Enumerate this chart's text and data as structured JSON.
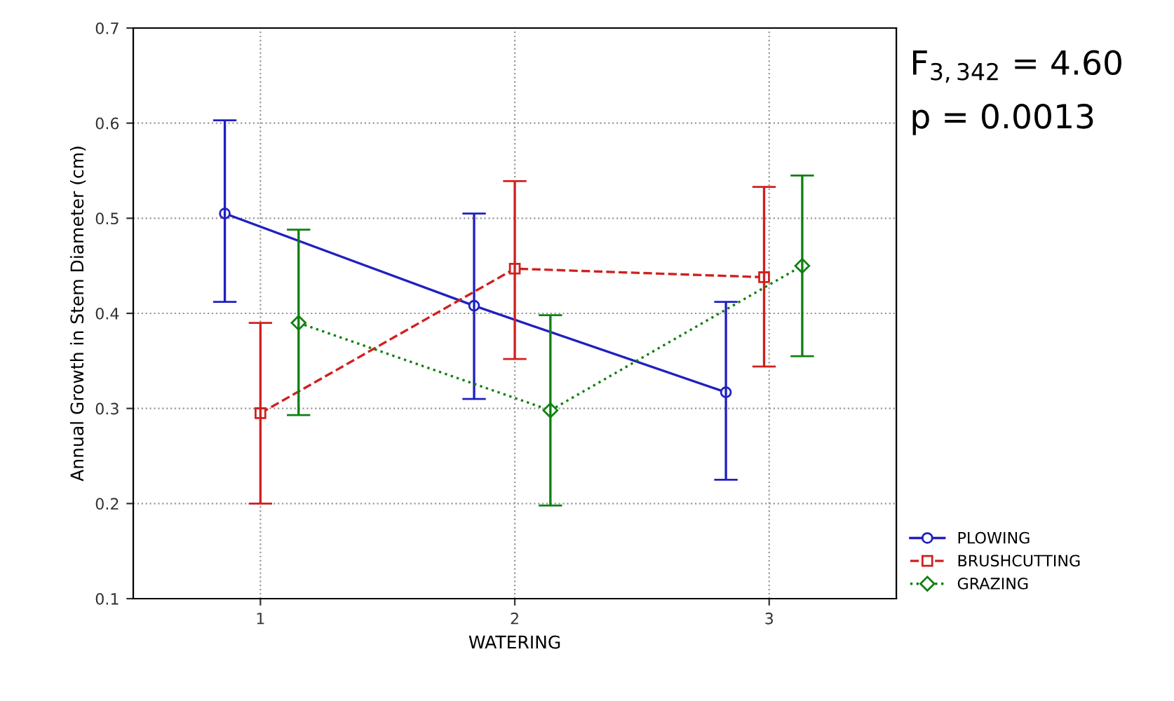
{
  "chart_data": {
    "type": "line",
    "xlabel": "WATERING",
    "ylabel": "Annual Growth in Stem Diameter (cm)",
    "xlim": [
      0.5,
      3.5
    ],
    "xticks": [
      1,
      2,
      3
    ],
    "ylim": [
      0.1,
      0.7
    ],
    "yticks": [
      0.1,
      0.2,
      0.3,
      0.4,
      0.5,
      0.6,
      0.7
    ],
    "grid": true,
    "legend": "bottom right",
    "series": [
      {
        "name": "PLOWING",
        "color": "#2020c0",
        "x": [
          0.86,
          1.84,
          2.83
        ],
        "values": [
          0.505,
          0.408,
          0.317
        ],
        "errors": [
          [
            0.412,
            0.603
          ],
          [
            0.31,
            0.505
          ],
          [
            0.225,
            0.412
          ]
        ],
        "marker": "circle",
        "line_style": "solid"
      },
      {
        "name": "BRUSHCUTTING",
        "color": "#d02020",
        "x": [
          1.0,
          2.0,
          2.98
        ],
        "values": [
          0.295,
          0.447,
          0.438
        ],
        "errors": [
          [
            0.2,
            0.39
          ],
          [
            0.352,
            0.539
          ],
          [
            0.344,
            0.533
          ]
        ],
        "marker": "square",
        "line_style": "dashed"
      },
      {
        "name": "GRAZING",
        "color": "#108010",
        "x": [
          1.15,
          2.14,
          3.13
        ],
        "values": [
          0.39,
          0.298,
          0.45
        ],
        "errors": [
          [
            0.293,
            0.488
          ],
          [
            0.198,
            0.398
          ],
          [
            0.355,
            0.545
          ]
        ],
        "marker": "diamond",
        "line_style": "dotted"
      }
    ],
    "annotations": [
      "F$_{3,342}$ = 4.60",
      "p = 0.0013"
    ]
  }
}
